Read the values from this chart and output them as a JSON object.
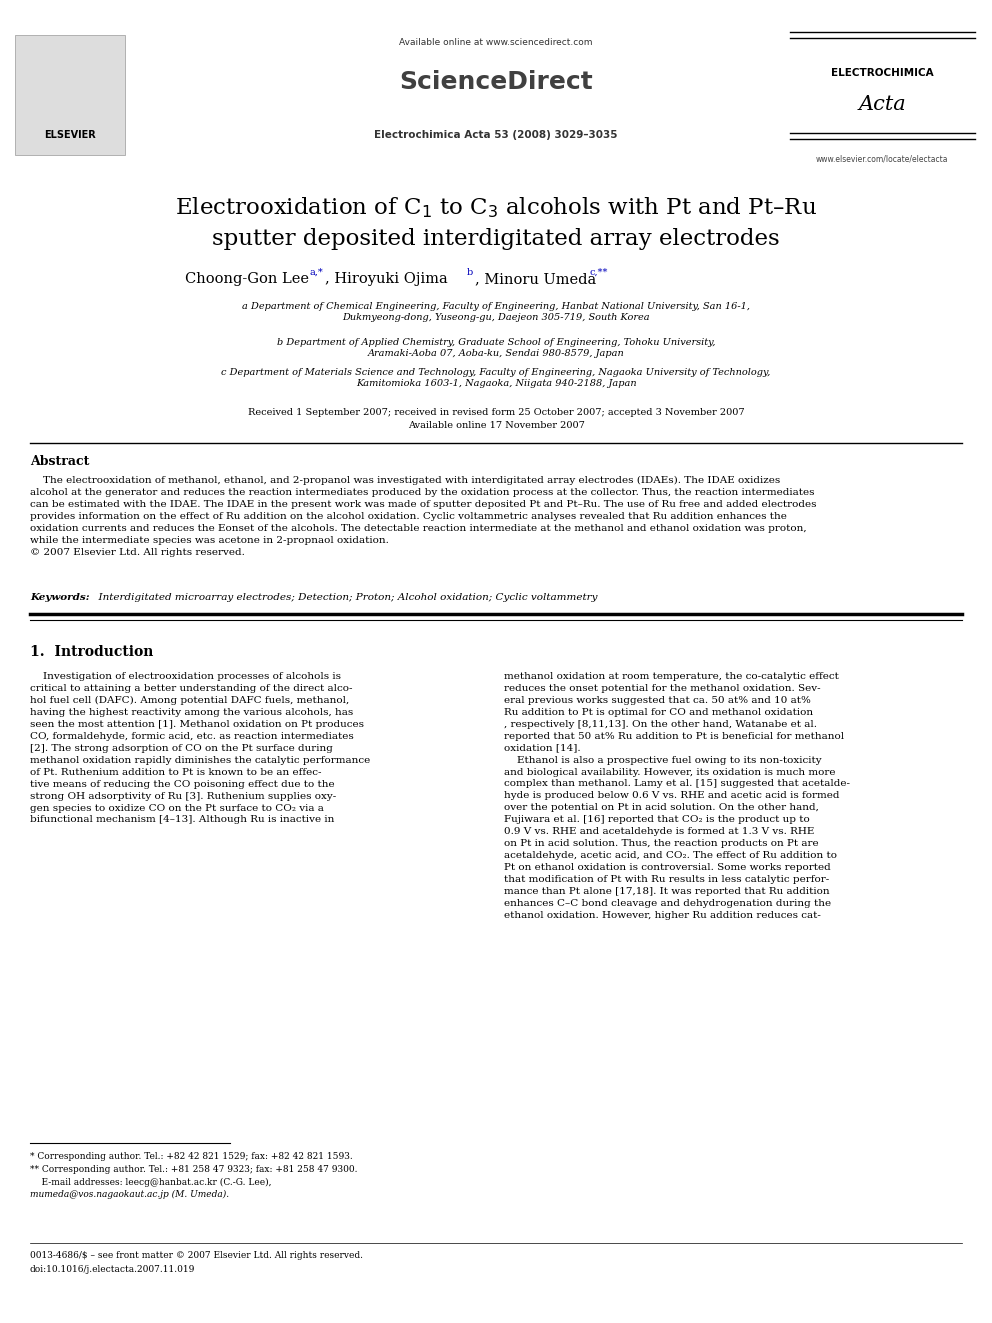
{
  "background_color": "#ffffff",
  "page_width": 9.92,
  "page_height": 13.23,
  "header_available": "Available online at www.sciencedirect.com",
  "header_sciencedirect": "ScienceDirect",
  "header_journal": "Electrochimica Acta 53 (2008) 3029–3035",
  "header_electrochimica": "ELECTROCHIMICA",
  "header_acta": "Acta",
  "header_website": "www.elsevier.com/locate/electacta",
  "header_elsevier": "ELSEVIER",
  "title_line1": "Electrooxidation of C",
  "title_line2": " to C",
  "title_line3": " alcohols with Pt and Pt–Ru",
  "title_line4": "sputter deposited interdigitated array electrodes",
  "author_lee": "Choong-Gon Lee",
  "author_lee_sup": "a,*",
  "author_ojima": ", Hiroyuki Ojima",
  "author_ojima_sup": "b",
  "author_umeda": ", Minoru Umeda",
  "author_umeda_sup": "c,**",
  "affil_a": "a Department of Chemical Engineering, Faculty of Engineering, Hanbat National University, San 16-1,",
  "affil_a2": "Dukmyeong-dong, Yuseong-gu, Daejeon 305-719, South Korea",
  "affil_b": "b Department of Applied Chemistry, Graduate School of Engineering, Tohoku University,",
  "affil_b2": "Aramaki-Aoba 07, Aoba-ku, Sendai 980-8579, Japan",
  "affil_c": "c Department of Materials Science and Technology, Faculty of Engineering, Nagaoka University of Technology,",
  "affil_c2": "Kamitomioka 1603-1, Nagaoka, Niigata 940-2188, Japan",
  "dates1": "Received 1 September 2007; received in revised form 25 October 2007; accepted 3 November 2007",
  "dates2": "Available online 17 November 2007",
  "abstract_title": "Abstract",
  "abstract_body": "    The electrooxidation of methanol, ethanol, and 2-propanol was investigated with interdigitated array electrodes (IDAEs). The IDAE oxidizes\nalcohol at the generator and reduces the reaction intermediates produced by the oxidation process at the collector. Thus, the reaction intermediates\ncan be estimated with the IDAE. The IDAE in the present work was made of sputter deposited Pt and Pt–Ru. The use of Ru free and added electrodes\nprovides information on the effect of Ru addition on the alcohol oxidation. Cyclic voltammetric analyses revealed that Ru addition enhances the\noxidation currents and reduces the Eonset of the alcohols. The detectable reaction intermediate at the methanol and ethanol oxidation was proton,\nwhile the intermediate species was acetone in 2-propnaol oxidation.\n© 2007 Elsevier Ltd. All rights reserved.",
  "keywords_label": "Keywords:",
  "keywords_text": "  Interdigitated microarray electrodes; Detection; Proton; Alcohol oxidation; Cyclic voltammetry",
  "section1_title": "1.  Introduction",
  "col1_lines": [
    "    Investigation of electrooxidation processes of alcohols is",
    "critical to attaining a better understanding of the direct alco-",
    "hol fuel cell (DAFC). Among potential DAFC fuels, methanol,",
    "having the highest reactivity among the various alcohols, has",
    "seen the most attention [1]. Methanol oxidation on Pt produces",
    "CO, formaldehyde, formic acid, etc. as reaction intermediates",
    "[2]. The strong adsorption of CO on the Pt surface during",
    "methanol oxidation rapidly diminishes the catalytic performance",
    "of Pt. Ruthenium addition to Pt is known to be an effec-",
    "tive means of reducing the CO poisoning effect due to the",
    "strong OH adsorptivity of Ru [3]. Ruthenium supplies oxy-",
    "gen species to oxidize CO on the Pt surface to CO₂ via a",
    "bifunctional mechanism [4–13]. Although Ru is inactive in"
  ],
  "col2_lines": [
    "methanol oxidation at room temperature, the co-catalytic effect",
    "reduces the onset potential for the methanol oxidation. Sev-",
    "eral previous works suggested that ca. 50 at% and 10 at%",
    "Ru addition to Pt is optimal for CO and methanol oxidation",
    ", respectively [8,11,13]. On the other hand, Watanabe et al.",
    "reported that 50 at% Ru addition to Pt is beneficial for methanol",
    "oxidation [14].",
    "    Ethanol is also a prospective fuel owing to its non-toxicity",
    "and biological availability. However, its oxidation is much more",
    "complex than methanol. Lamy et al. [15] suggested that acetalde-",
    "hyde is produced below 0.6 V vs. RHE and acetic acid is formed",
    "over the potential on Pt in acid solution. On the other hand,",
    "Fujiwara et al. [16] reported that CO₂ is the product up to",
    "0.9 V vs. RHE and acetaldehyde is formed at 1.3 V vs. RHE",
    "on Pt in acid solution. Thus, the reaction products on Pt are",
    "acetaldehyde, acetic acid, and CO₂. The effect of Ru addition to",
    "Pt on ethanol oxidation is controversial. Some works reported",
    "that modification of Pt with Ru results in less catalytic perfor-",
    "mance than Pt alone [17,18]. It was reported that Ru addition",
    "enhances C–C bond cleavage and dehydrogenation during the",
    "ethanol oxidation. However, higher Ru addition reduces cat-"
  ],
  "footnote_star": "* Corresponding author. Tel.: +82 42 821 1529; fax: +82 42 821 1593.",
  "footnote_starstar": "** Corresponding author. Tel.: +81 258 47 9323; fax: +81 258 47 9300.",
  "footnote_email1": "    E-mail addresses: leecg@hanbat.ac.kr (C.-G. Lee),",
  "footnote_email2": "mumeda@vos.nagaokaut.ac.jp (M. Umeda).",
  "footer_issn": "0013-4686/$ – see front matter © 2007 Elsevier Ltd. All rights reserved.",
  "footer_doi": "doi:10.1016/j.electacta.2007.11.019"
}
